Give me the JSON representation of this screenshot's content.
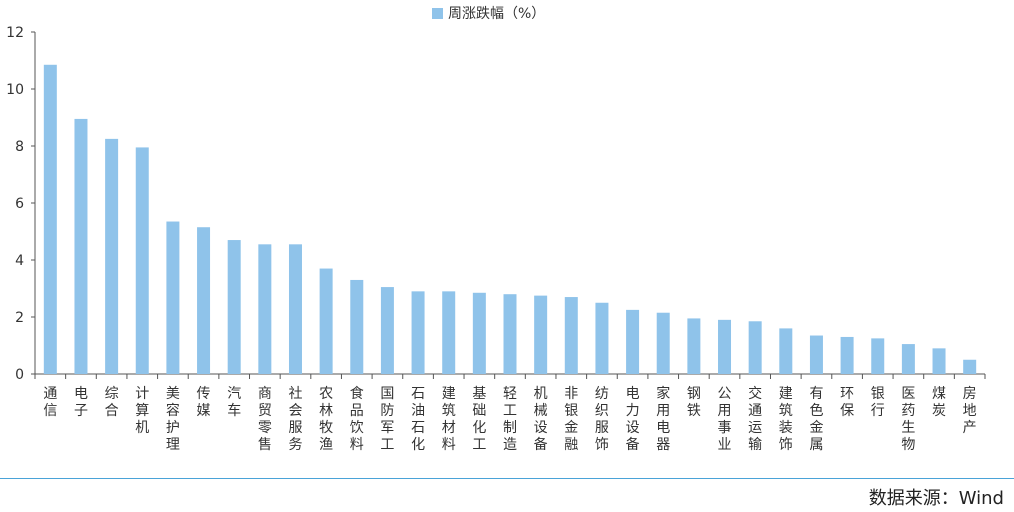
{
  "chart_data": {
    "type": "bar",
    "series": [
      {
        "name": "周涨跌幅（%）",
        "color": "#8fc3ea",
        "values": [
          10.85,
          8.95,
          8.25,
          7.95,
          5.35,
          5.15,
          4.7,
          4.55,
          4.55,
          3.7,
          3.3,
          3.05,
          2.9,
          2.9,
          2.85,
          2.8,
          2.75,
          2.7,
          2.5,
          2.25,
          2.15,
          1.95,
          1.9,
          1.85,
          1.6,
          1.35,
          1.3,
          1.25,
          1.05,
          0.9,
          0.5
        ]
      }
    ],
    "categories": [
      "通信",
      "电子",
      "综合",
      "计算机",
      "美容护理",
      "传媒",
      "汽车",
      "商贸零售",
      "社会服务",
      "农林牧渔",
      "食品饮料",
      "国防军工",
      "石油石化",
      "建筑材料",
      "基础化工",
      "轻工制造",
      "机械设备",
      "非银金融",
      "纺织服饰",
      "电力设备",
      "家用电器",
      "钢铁",
      "公用事业",
      "交通运输",
      "建筑装饰",
      "有色金属",
      "环保",
      "银行",
      "医药生物",
      "煤炭",
      "房地产"
    ],
    "ylim": [
      0,
      12
    ],
    "yticks": [
      0,
      2,
      4,
      6,
      8,
      10,
      12
    ],
    "grid": false,
    "legend_position": "top-center"
  },
  "source_label": "数据来源：Wind",
  "colors": {
    "axis": "#555555",
    "rule": "#4aa3d8"
  }
}
